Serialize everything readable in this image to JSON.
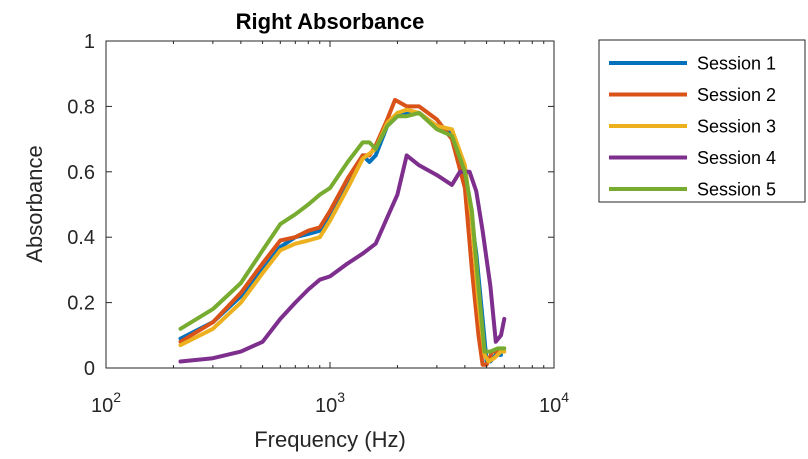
{
  "chart_data": {
    "type": "line",
    "title": "Right Absorbance",
    "xlabel": "Frequency (Hz)",
    "ylabel": "Absorbance",
    "xscale": "log",
    "xlim": [
      100,
      10000
    ],
    "ylim": [
      0,
      1
    ],
    "xticks": [
      {
        "value": 100,
        "base": "10",
        "exp": "2"
      },
      {
        "value": 1000,
        "base": "10",
        "exp": "3"
      },
      {
        "value": 10000,
        "base": "10",
        "exp": "4"
      }
    ],
    "yticks": [
      {
        "value": 0,
        "label": "0"
      },
      {
        "value": 0.2,
        "label": "0.2"
      },
      {
        "value": 0.4,
        "label": "0.4"
      },
      {
        "value": 0.6,
        "label": "0.6"
      },
      {
        "value": 0.8,
        "label": "0.8"
      },
      {
        "value": 1,
        "label": "1"
      }
    ],
    "grid": false,
    "legend_position": "outside-right-top",
    "series": [
      {
        "name": "Session 1",
        "color": "#0072BD",
        "x": [
          215,
          300,
          400,
          500,
          600,
          700,
          800,
          900,
          1000,
          1200,
          1400,
          1500,
          1600,
          1800,
          2000,
          2200,
          2500,
          3000,
          3500,
          4000,
          4500,
          4800,
          5000,
          5200,
          5500,
          5800
        ],
        "y": [
          0.09,
          0.14,
          0.22,
          0.3,
          0.37,
          0.4,
          0.41,
          0.42,
          0.47,
          0.57,
          0.65,
          0.63,
          0.65,
          0.74,
          0.77,
          0.78,
          0.78,
          0.74,
          0.72,
          0.6,
          0.35,
          0.15,
          0.02,
          0.02,
          0.04,
          0.04
        ]
      },
      {
        "name": "Session 2",
        "color": "#D95319",
        "x": [
          215,
          300,
          400,
          500,
          600,
          700,
          800,
          900,
          1000,
          1200,
          1400,
          1500,
          1600,
          1800,
          1950,
          2200,
          2500,
          3000,
          3500,
          4000,
          4300,
          4600,
          4800,
          5000,
          5300,
          5600
        ],
        "y": [
          0.08,
          0.14,
          0.23,
          0.32,
          0.39,
          0.4,
          0.42,
          0.43,
          0.48,
          0.58,
          0.65,
          0.65,
          0.68,
          0.76,
          0.82,
          0.8,
          0.8,
          0.76,
          0.7,
          0.55,
          0.3,
          0.1,
          0.01,
          0.01,
          0.05,
          0.05
        ]
      },
      {
        "name": "Session 3",
        "color": "#EDB120",
        "x": [
          215,
          300,
          400,
          500,
          600,
          700,
          800,
          900,
          1000,
          1200,
          1400,
          1600,
          1800,
          2000,
          2200,
          2500,
          3000,
          3500,
          4000,
          4300,
          4600,
          4900,
          5100,
          5400,
          5800,
          6000
        ],
        "y": [
          0.07,
          0.12,
          0.2,
          0.29,
          0.36,
          0.38,
          0.39,
          0.4,
          0.45,
          0.55,
          0.64,
          0.67,
          0.75,
          0.78,
          0.79,
          0.78,
          0.74,
          0.73,
          0.62,
          0.45,
          0.2,
          0.04,
          0.02,
          0.03,
          0.05,
          0.05
        ]
      },
      {
        "name": "Session 4",
        "color": "#7E2F8E",
        "x": [
          215,
          300,
          400,
          500,
          600,
          700,
          800,
          900,
          1000,
          1200,
          1400,
          1600,
          1800,
          2000,
          2200,
          2500,
          3000,
          3500,
          3800,
          4200,
          4500,
          4800,
          5200,
          5500,
          5800,
          6000
        ],
        "y": [
          0.02,
          0.03,
          0.05,
          0.08,
          0.15,
          0.2,
          0.24,
          0.27,
          0.28,
          0.32,
          0.35,
          0.38,
          0.46,
          0.53,
          0.65,
          0.62,
          0.59,
          0.56,
          0.6,
          0.6,
          0.54,
          0.42,
          0.25,
          0.08,
          0.1,
          0.15
        ]
      },
      {
        "name": "Session 5",
        "color": "#77AC30",
        "x": [
          215,
          300,
          400,
          500,
          600,
          700,
          800,
          900,
          1000,
          1200,
          1400,
          1500,
          1600,
          1800,
          2000,
          2200,
          2500,
          3000,
          3500,
          4000,
          4300,
          4600,
          4900,
          5200,
          5600,
          6000
        ],
        "y": [
          0.12,
          0.18,
          0.26,
          0.36,
          0.44,
          0.47,
          0.5,
          0.53,
          0.55,
          0.63,
          0.69,
          0.69,
          0.67,
          0.74,
          0.77,
          0.77,
          0.78,
          0.73,
          0.71,
          0.6,
          0.48,
          0.25,
          0.05,
          0.05,
          0.06,
          0.06
        ]
      }
    ]
  }
}
